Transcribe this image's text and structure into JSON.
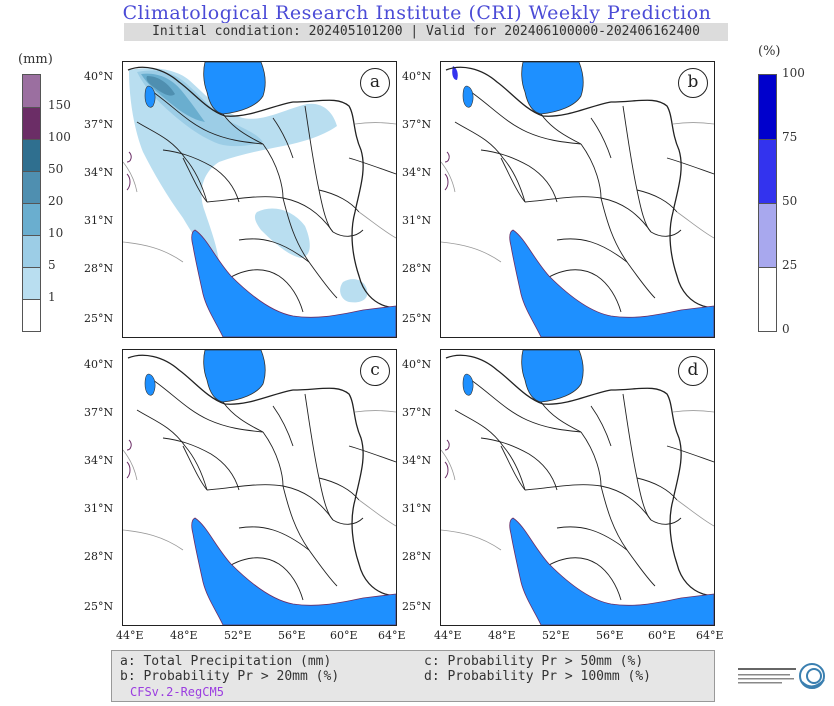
{
  "header": {
    "title": "Climatological Research Institute (CRI) Weekly Prediction",
    "subtitle": "Initial condiation: 202405101200 | Valid for 202406100000-202406162400"
  },
  "left_colorbar": {
    "unit": "(mm)",
    "ticks": [
      "150",
      "100",
      "50",
      "20",
      "10",
      "5",
      "1"
    ],
    "colors": [
      "#9b6fa0",
      "#6b2d66",
      "#2f6f8f",
      "#4f8fb0",
      "#6aaecf",
      "#9ccde6",
      "#b9def0",
      "#ffffff"
    ]
  },
  "right_colorbar": {
    "unit": "(%)",
    "ticks": [
      "100",
      "75",
      "50",
      "25",
      "0"
    ],
    "colors": [
      "#0000cc",
      "#3333ee",
      "#a8a8ee",
      "#ffffff"
    ]
  },
  "panels": [
    {
      "letter": "a"
    },
    {
      "letter": "b"
    },
    {
      "letter": "c"
    },
    {
      "letter": "d"
    }
  ],
  "axes": {
    "lat_labels": [
      "40°N",
      "37°N",
      "34°N",
      "31°N",
      "28°N",
      "25°N"
    ],
    "lon_labels": [
      "44°E",
      "48°E",
      "52°E",
      "56°E",
      "60°E",
      "64°E"
    ]
  },
  "legend": {
    "a": "a: Total Precipitation (mm)",
    "b": "b: Probability Pr > 20mm (%)",
    "c": "c: Probability Pr > 50mm (%)",
    "d": "d: Probability Pr > 100mm (%)",
    "model": "CFSv.2-RegCM5"
  },
  "colors": {
    "sea": "#1e90ff",
    "title": "#4b4bd6",
    "model": "#9b3de0"
  }
}
